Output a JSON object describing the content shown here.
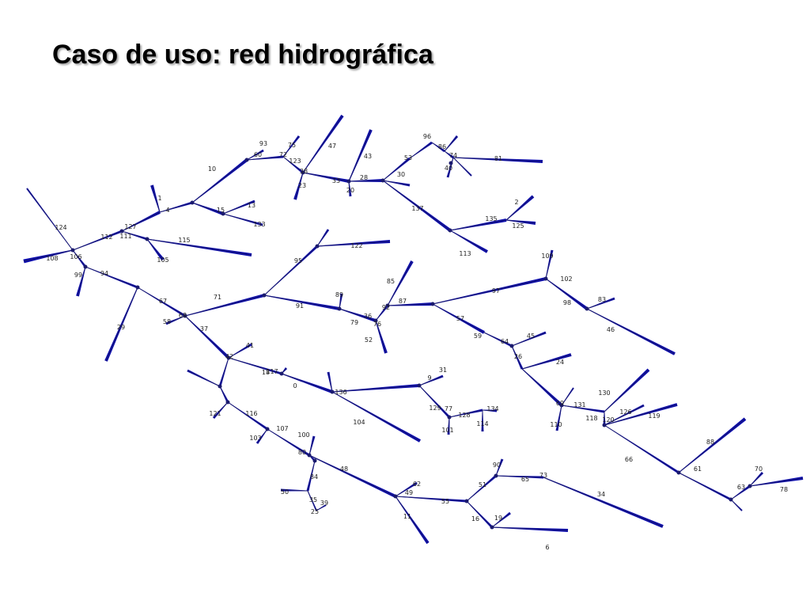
{
  "slide": {
    "title": "Caso de uso: red hidrográfica"
  },
  "colors": {
    "edge": "#0b0bb0",
    "label": "#222222",
    "background": "#ffffff"
  },
  "node_labels": [
    "0",
    "1",
    "2",
    "4",
    "6",
    "9",
    "10",
    "11",
    "13",
    "15",
    "16",
    "18",
    "19",
    "20",
    "23",
    "24",
    "25",
    "26",
    "28",
    "29",
    "30",
    "31",
    "33",
    "34",
    "35",
    "36",
    "37",
    "38",
    "39",
    "40",
    "41",
    "42",
    "43",
    "45",
    "46",
    "47",
    "48",
    "49",
    "50",
    "51",
    "52",
    "53",
    "55",
    "57",
    "58",
    "59",
    "60",
    "61",
    "62",
    "63",
    "64",
    "65",
    "66",
    "67",
    "68",
    "69",
    "70",
    "71",
    "72",
    "73",
    "74",
    "75",
    "76",
    "77",
    "78",
    "79",
    "80",
    "81",
    "83",
    "84",
    "85",
    "86",
    "87",
    "88",
    "89",
    "90",
    "91",
    "92",
    "93",
    "94",
    "95",
    "96",
    "97",
    "98",
    "99",
    "100",
    "101",
    "102",
    "103",
    "104",
    "105",
    "106",
    "107",
    "108",
    "109",
    "110",
    "111",
    "112",
    "113",
    "114",
    "115",
    "116",
    "117",
    "118",
    "119",
    "120",
    "121",
    "122",
    "123",
    "124",
    "125",
    "126",
    "127",
    "128",
    "129",
    "130",
    "131",
    "133",
    "134",
    "135",
    "136",
    "137"
  ]
}
